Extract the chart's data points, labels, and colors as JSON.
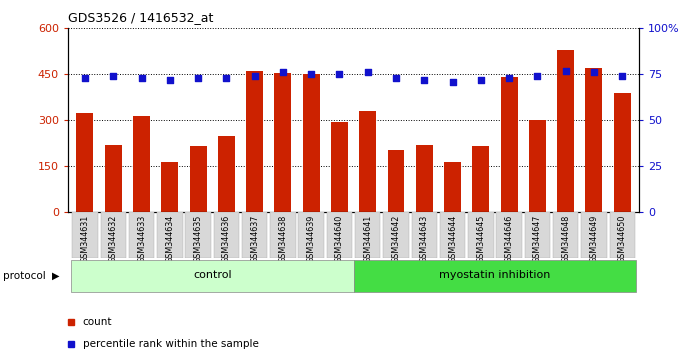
{
  "title": "GDS3526 / 1416532_at",
  "samples": [
    "GSM344631",
    "GSM344632",
    "GSM344633",
    "GSM344634",
    "GSM344635",
    "GSM344636",
    "GSM344637",
    "GSM344638",
    "GSM344639",
    "GSM344640",
    "GSM344641",
    "GSM344642",
    "GSM344643",
    "GSM344644",
    "GSM344645",
    "GSM344646",
    "GSM344647",
    "GSM344648",
    "GSM344649",
    "GSM344650"
  ],
  "counts": [
    325,
    220,
    315,
    165,
    215,
    250,
    460,
    455,
    450,
    295,
    330,
    205,
    220,
    165,
    215,
    440,
    300,
    530,
    470,
    390
  ],
  "percentiles": [
    73,
    74,
    73,
    72,
    73,
    73,
    74,
    76,
    75,
    75,
    76,
    73,
    72,
    71,
    72,
    73,
    74,
    77,
    76,
    74
  ],
  "bar_color": "#cc2200",
  "dot_color": "#1111cc",
  "control_color": "#ccffcc",
  "myostatin_color": "#44dd44",
  "control_label": "control",
  "myostatin_label": "myostatin inhibition",
  "protocol_label": "protocol",
  "legend_count": "count",
  "legend_percentile": "percentile rank within the sample",
  "ylim_left": [
    0,
    600
  ],
  "ylim_right": [
    0,
    100
  ],
  "yticks_left": [
    0,
    150,
    300,
    450,
    600
  ],
  "yticks_right": [
    0,
    25,
    50,
    75,
    100
  ],
  "control_count": 10,
  "myostatin_count": 10,
  "bg_color": "#ffffff",
  "plot_bg_color": "#ffffff"
}
